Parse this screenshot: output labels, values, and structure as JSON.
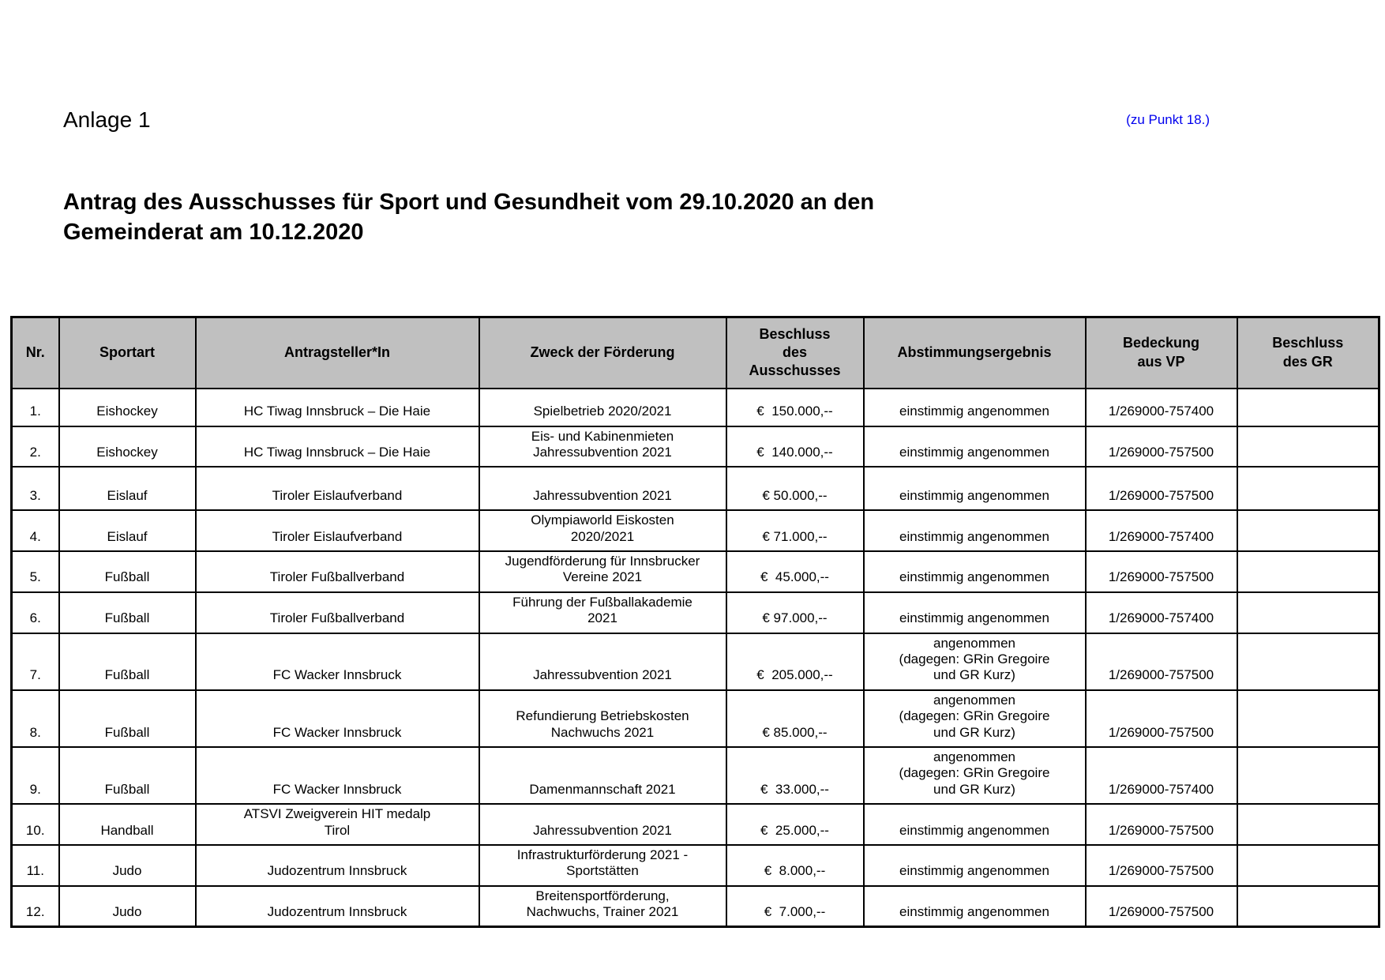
{
  "page": {
    "annex_label": "Anlage 1",
    "point_reference": "(zu Punkt 18.)",
    "title": "Antrag des Ausschusses für Sport und Gesundheit vom 29.10.2020 an den\nGemeinderat am 10.12.2020"
  },
  "colors": {
    "header_bg": "#c0c0c0",
    "reference_blue": "#0000ee",
    "border": "#000000"
  },
  "table": {
    "columns": [
      {
        "key": "nr",
        "label": "Nr."
      },
      {
        "key": "sportart",
        "label": "Sportart"
      },
      {
        "key": "antragsteller",
        "label": "Antragsteller*In"
      },
      {
        "key": "zweck",
        "label": "Zweck der Förderung"
      },
      {
        "key": "beschluss_ausschuss",
        "label": "Beschluss\ndes\nAusschusses"
      },
      {
        "key": "abstimmung",
        "label": "Abstimmungsergebnis"
      },
      {
        "key": "bedeckung",
        "label": "Bedeckung\naus VP"
      },
      {
        "key": "beschluss_gr",
        "label": "Beschluss\ndes GR"
      }
    ],
    "rows": [
      {
        "nr": "1.",
        "sportart": "Eishockey",
        "antragsteller": "HC Tiwag Innsbruck – Die Haie",
        "zweck": "Spielbetrieb 2020/2021",
        "beschluss_ausschuss": "€  150.000,--",
        "abstimmung": "einstimmig angenommen",
        "bedeckung": "1/269000-757400",
        "beschluss_gr": ""
      },
      {
        "nr": "2.",
        "sportart": "Eishockey",
        "antragsteller": "HC Tiwag Innsbruck – Die Haie",
        "zweck": "Eis- und Kabinenmieten\nJahressubvention 2021",
        "beschluss_ausschuss": "€  140.000,--",
        "abstimmung": "einstimmig angenommen",
        "bedeckung": "1/269000-757500",
        "beschluss_gr": ""
      },
      {
        "nr": "3.",
        "sportart": "Eislauf",
        "antragsteller": "Tiroler Eislaufverband",
        "zweck": "Jahressubvention 2021",
        "beschluss_ausschuss": "€ 50.000,--",
        "abstimmung": "einstimmig angenommen",
        "bedeckung": "1/269000-757500",
        "beschluss_gr": ""
      },
      {
        "nr": "4.",
        "sportart": "Eislauf",
        "antragsteller": "Tiroler Eislaufverband",
        "zweck": "Olympiaworld Eiskosten\n2020/2021",
        "beschluss_ausschuss": "€ 71.000,--",
        "abstimmung": "einstimmig angenommen",
        "bedeckung": "1/269000-757400",
        "beschluss_gr": ""
      },
      {
        "nr": "5.",
        "sportart": "Fußball",
        "antragsteller": "Tiroler Fußballverband",
        "zweck": "Jugendförderung für Innsbrucker\nVereine 2021",
        "beschluss_ausschuss": "€  45.000,--",
        "abstimmung": "einstimmig angenommen",
        "bedeckung": "1/269000-757500",
        "beschluss_gr": ""
      },
      {
        "nr": "6.",
        "sportart": "Fußball",
        "antragsteller": "Tiroler Fußballverband",
        "zweck": "Führung der Fußballakademie\n2021",
        "beschluss_ausschuss": "€ 97.000,--",
        "abstimmung": "einstimmig angenommen",
        "bedeckung": "1/269000-757400",
        "beschluss_gr": ""
      },
      {
        "nr": "7.",
        "sportart": "Fußball",
        "antragsteller": "FC Wacker Innsbruck",
        "zweck": "Jahressubvention 2021",
        "beschluss_ausschuss": "€  205.000,--",
        "abstimmung": "angenommen\n(dagegen: GRin Gregoire\nund GR Kurz)",
        "bedeckung": "1/269000-757500",
        "beschluss_gr": ""
      },
      {
        "nr": "8.",
        "sportart": "Fußball",
        "antragsteller": "FC Wacker Innsbruck",
        "zweck": "Refundierung Betriebskosten\nNachwuchs 2021",
        "beschluss_ausschuss": "€ 85.000,--",
        "abstimmung": "angenommen\n(dagegen: GRin Gregoire\nund GR Kurz)",
        "bedeckung": "1/269000-757500",
        "beschluss_gr": ""
      },
      {
        "nr": "9.",
        "sportart": "Fußball",
        "antragsteller": "FC Wacker Innsbruck",
        "zweck": "Damenmannschaft 2021",
        "beschluss_ausschuss": "€  33.000,--",
        "abstimmung": "angenommen\n(dagegen: GRin Gregoire\nund GR Kurz)",
        "bedeckung": "1/269000-757400",
        "beschluss_gr": ""
      },
      {
        "nr": "10.",
        "sportart": "Handball",
        "antragsteller": "ATSVI Zweigverein HIT medalp\nTirol",
        "zweck": "Jahressubvention 2021",
        "beschluss_ausschuss": "€  25.000,--",
        "abstimmung": "einstimmig angenommen",
        "bedeckung": "1/269000-757500",
        "beschluss_gr": ""
      },
      {
        "nr": "11.",
        "sportart": "Judo",
        "antragsteller": "Judozentrum Innsbruck",
        "zweck": "Infrastrukturförderung 2021 -\nSportstätten",
        "beschluss_ausschuss": "€  8.000,--",
        "abstimmung": "einstimmig angenommen",
        "bedeckung": "1/269000-757500",
        "beschluss_gr": ""
      },
      {
        "nr": "12.",
        "sportart": "Judo",
        "antragsteller": "Judozentrum Innsbruck",
        "zweck": "Breitensportförderung,\nNachwuchs, Trainer 2021",
        "beschluss_ausschuss": "€  7.000,--",
        "abstimmung": "einstimmig angenommen",
        "bedeckung": "1/269000-757500",
        "beschluss_gr": ""
      }
    ]
  }
}
